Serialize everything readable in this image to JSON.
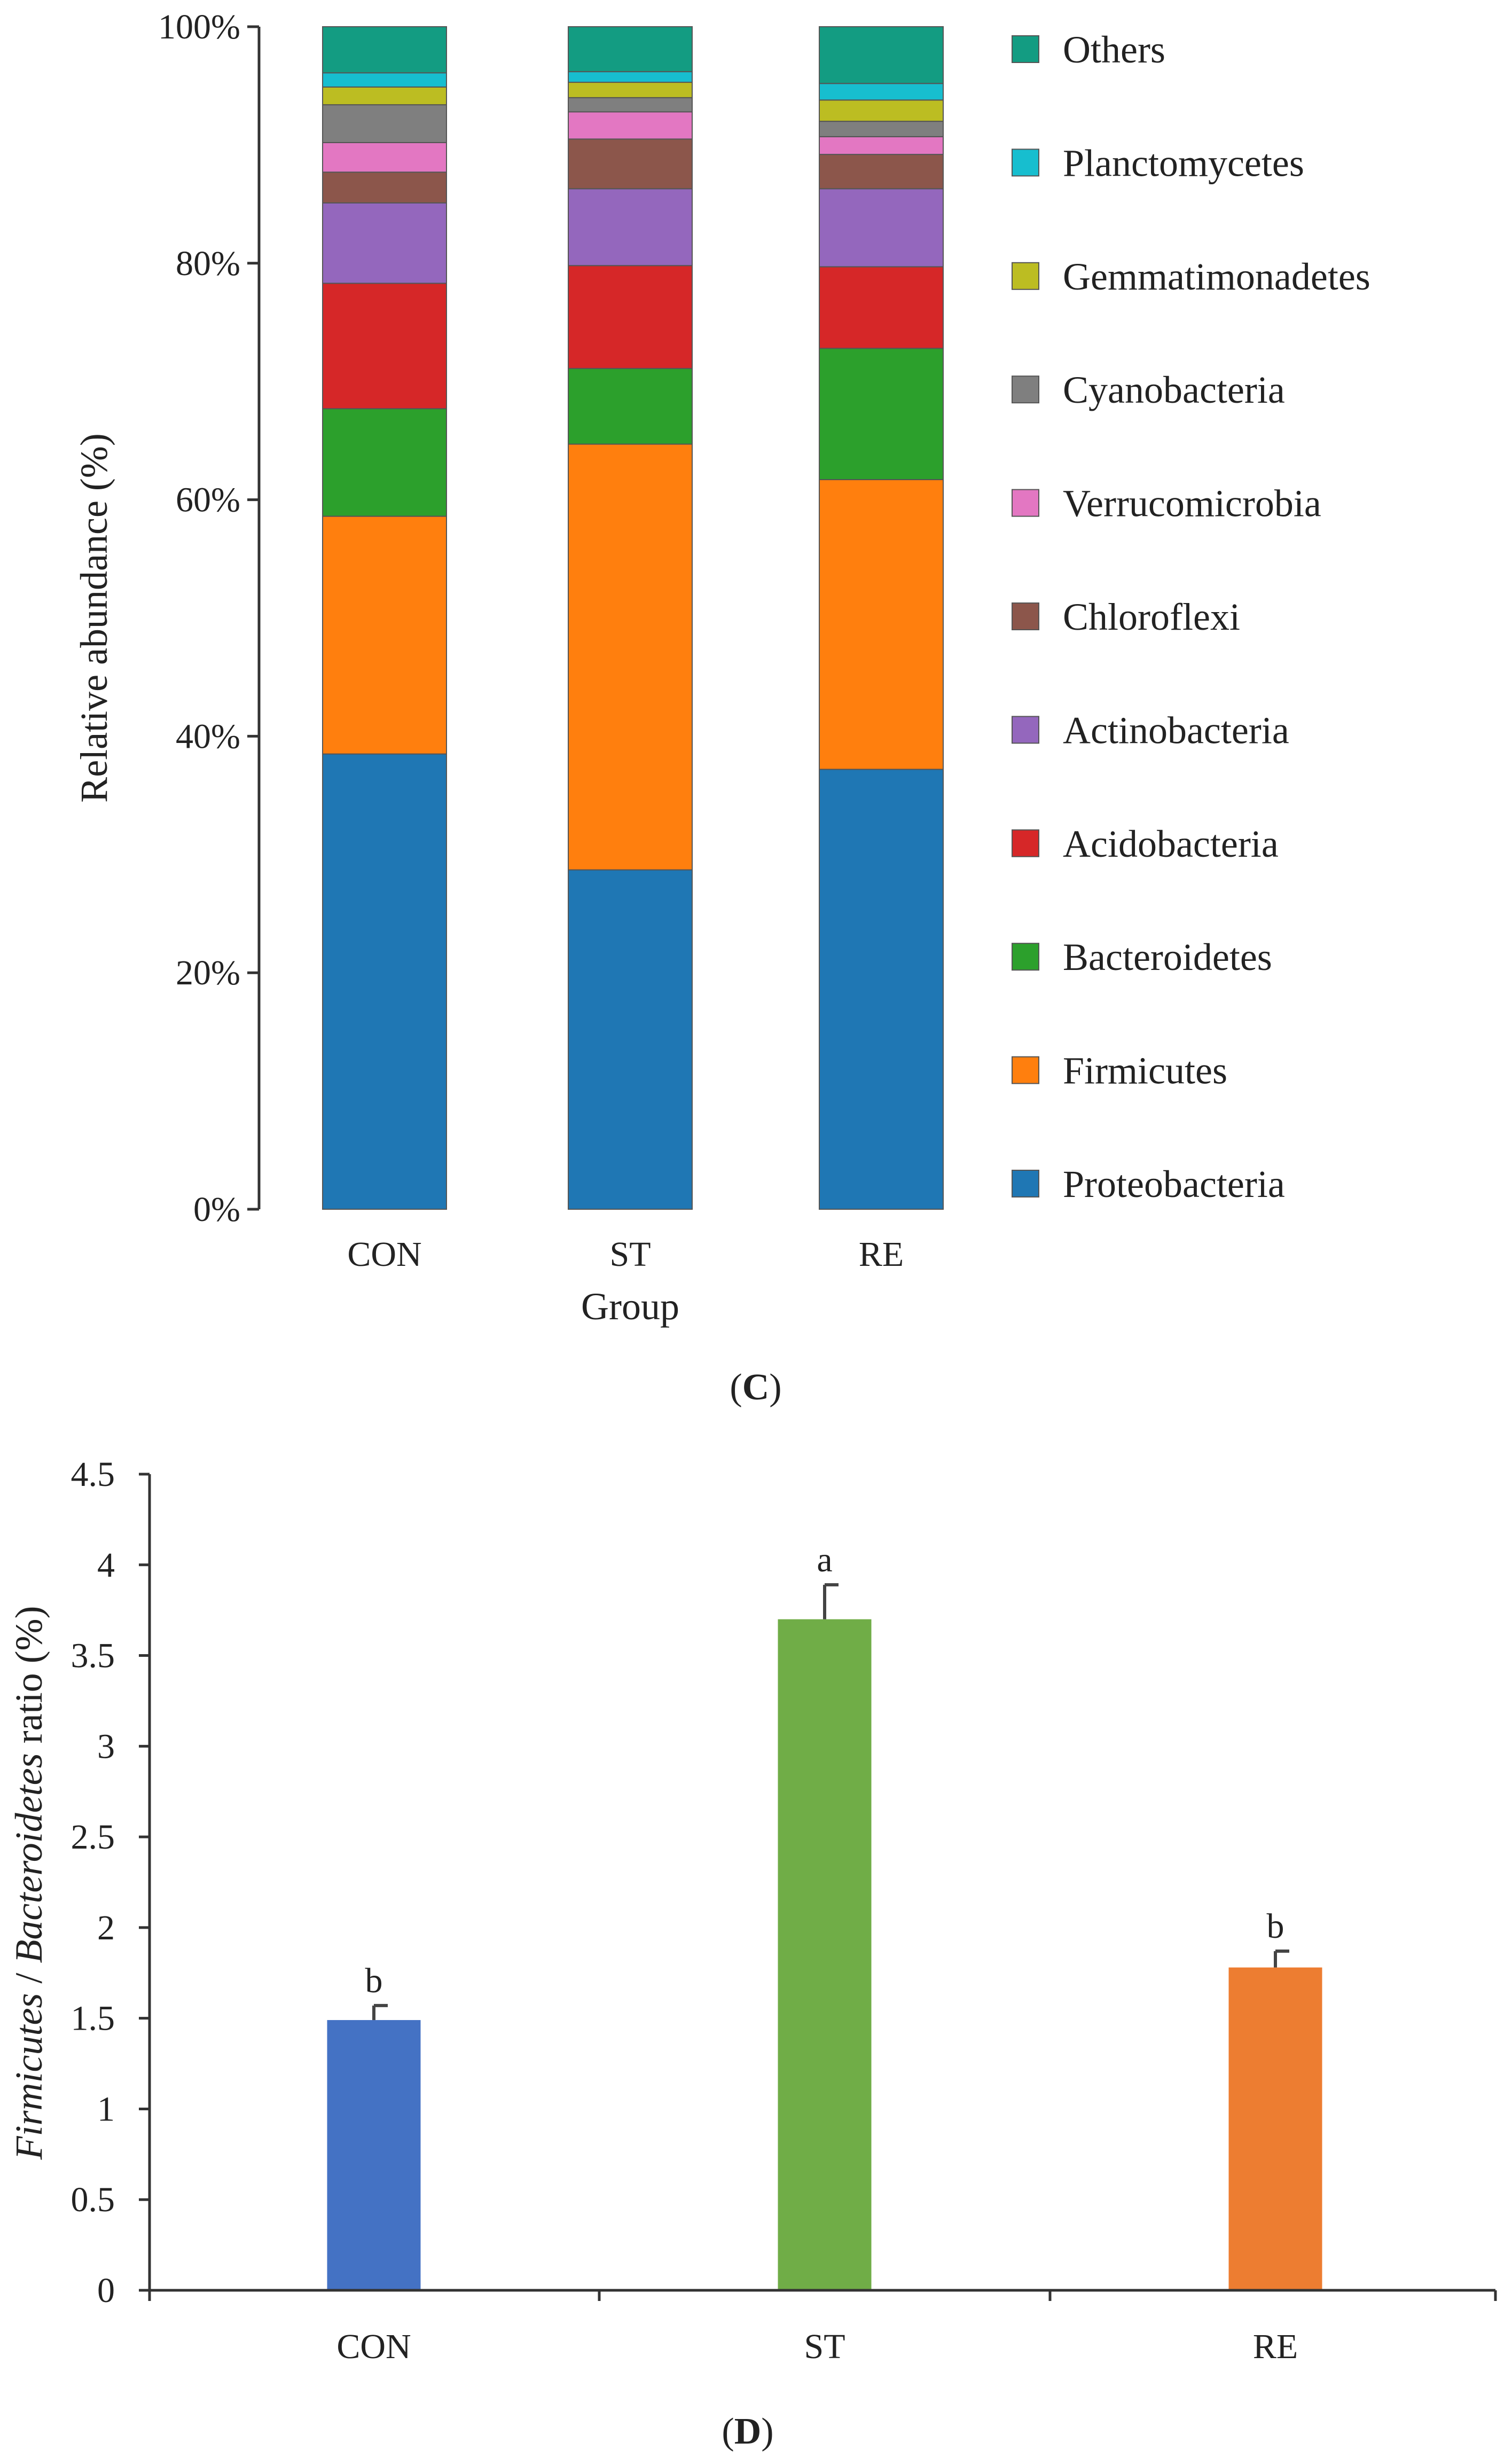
{
  "chart_data": [
    {
      "type": "bar",
      "stacked": true,
      "panel_label_prefix": "(",
      "panel_label": "C",
      "panel_label_suffix": ")",
      "xlabel": "Group",
      "ylabel": "Relative abundance (%)",
      "ylim": [
        0,
        100
      ],
      "yticks": [
        "0%",
        "20%",
        "40%",
        "60%",
        "80%",
        "100%"
      ],
      "categories": [
        "CON",
        "ST",
        "RE"
      ],
      "legend_position": "right",
      "series": [
        {
          "name": "Proteobacteria",
          "color": "#1f77b4",
          "values": [
            38.5,
            28.7,
            37.2
          ]
        },
        {
          "name": "Firmicutes",
          "color": "#ff7f0e",
          "values": [
            20.1,
            36.0,
            24.5
          ]
        },
        {
          "name": "Bacteroidetes",
          "color": "#2ca02c",
          "values": [
            9.1,
            6.4,
            11.1
          ]
        },
        {
          "name": "Acidobacteria",
          "color": "#d62728",
          "values": [
            10.6,
            8.7,
            6.9
          ]
        },
        {
          "name": "Actinobacteria",
          "color": "#9467bd",
          "values": [
            6.8,
            6.5,
            6.6
          ]
        },
        {
          "name": "Chloroflexi",
          "color": "#8c564b",
          "values": [
            2.6,
            4.2,
            2.9
          ]
        },
        {
          "name": "Verrucomicrobia",
          "color": "#e377c2",
          "values": [
            2.5,
            2.3,
            1.5
          ]
        },
        {
          "name": "Cyanobacteria",
          "color": "#7f7f7f",
          "values": [
            3.2,
            1.2,
            1.3
          ]
        },
        {
          "name": "Gemmatimonadetes",
          "color": "#bcbd22",
          "values": [
            1.5,
            1.3,
            1.8
          ]
        },
        {
          "name": "Planctomycetes",
          "color": "#17becf",
          "values": [
            1.2,
            0.9,
            1.4
          ]
        },
        {
          "name": "Others",
          "color": "#139c82",
          "values": [
            3.9,
            3.8,
            4.8
          ]
        }
      ]
    },
    {
      "type": "bar",
      "panel_label_prefix": "(",
      "panel_label": "D",
      "panel_label_suffix": ")",
      "ylabel_parts": [
        {
          "text": "Firmicutes",
          "italic": true
        },
        {
          "text": " / ",
          "italic": false
        },
        {
          "text": "Bacteroidetes",
          "italic": true
        },
        {
          "text": " ratio (%)",
          "italic": false
        }
      ],
      "ylim": [
        0,
        4.5
      ],
      "yticks": [
        "0",
        "0.5",
        "1",
        "1.5",
        "2",
        "2.5",
        "3",
        "3.5",
        "4",
        "4.5"
      ],
      "categories": [
        "CON",
        "ST",
        "RE"
      ],
      "values": [
        1.49,
        3.7,
        1.78
      ],
      "errors": [
        0.08,
        0.19,
        0.09
      ],
      "significance": [
        "b",
        "a",
        "b"
      ],
      "colors": [
        "#4472c4",
        "#70ad47",
        "#ed7d31"
      ]
    }
  ]
}
